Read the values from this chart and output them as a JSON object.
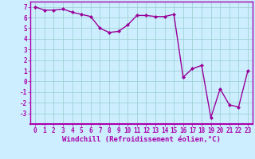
{
  "x": [
    0,
    1,
    2,
    3,
    4,
    5,
    6,
    7,
    8,
    9,
    10,
    11,
    12,
    13,
    14,
    15,
    16,
    17,
    18,
    19,
    20,
    21,
    22,
    23
  ],
  "y": [
    7.0,
    6.7,
    6.7,
    6.8,
    6.5,
    6.3,
    6.1,
    5.0,
    4.6,
    4.7,
    5.3,
    6.2,
    6.2,
    6.1,
    6.1,
    6.3,
    0.4,
    1.2,
    1.5,
    -3.4,
    -0.7,
    -2.2,
    -2.4,
    1.0
  ],
  "line_color": "#990099",
  "marker": "D",
  "marker_size": 2.0,
  "bg_color": "#cceeff",
  "grid_color": "#99cccc",
  "ylim": [
    -4.0,
    7.5
  ],
  "xlim": [
    -0.5,
    23.5
  ],
  "yticks": [
    -3,
    -2,
    -1,
    0,
    1,
    2,
    3,
    4,
    5,
    6,
    7
  ],
  "xticks": [
    0,
    1,
    2,
    3,
    4,
    5,
    6,
    7,
    8,
    9,
    10,
    11,
    12,
    13,
    14,
    15,
    16,
    17,
    18,
    19,
    20,
    21,
    22,
    23
  ],
  "xlabel": "Windchill (Refroidissement éolien,°C)",
  "spine_color": "#aa00aa",
  "label_color": "#aa00aa",
  "tick_color": "#aa00aa",
  "tick_fontsize": 5.5,
  "xlabel_fontsize": 6.5,
  "line_width": 1.0
}
